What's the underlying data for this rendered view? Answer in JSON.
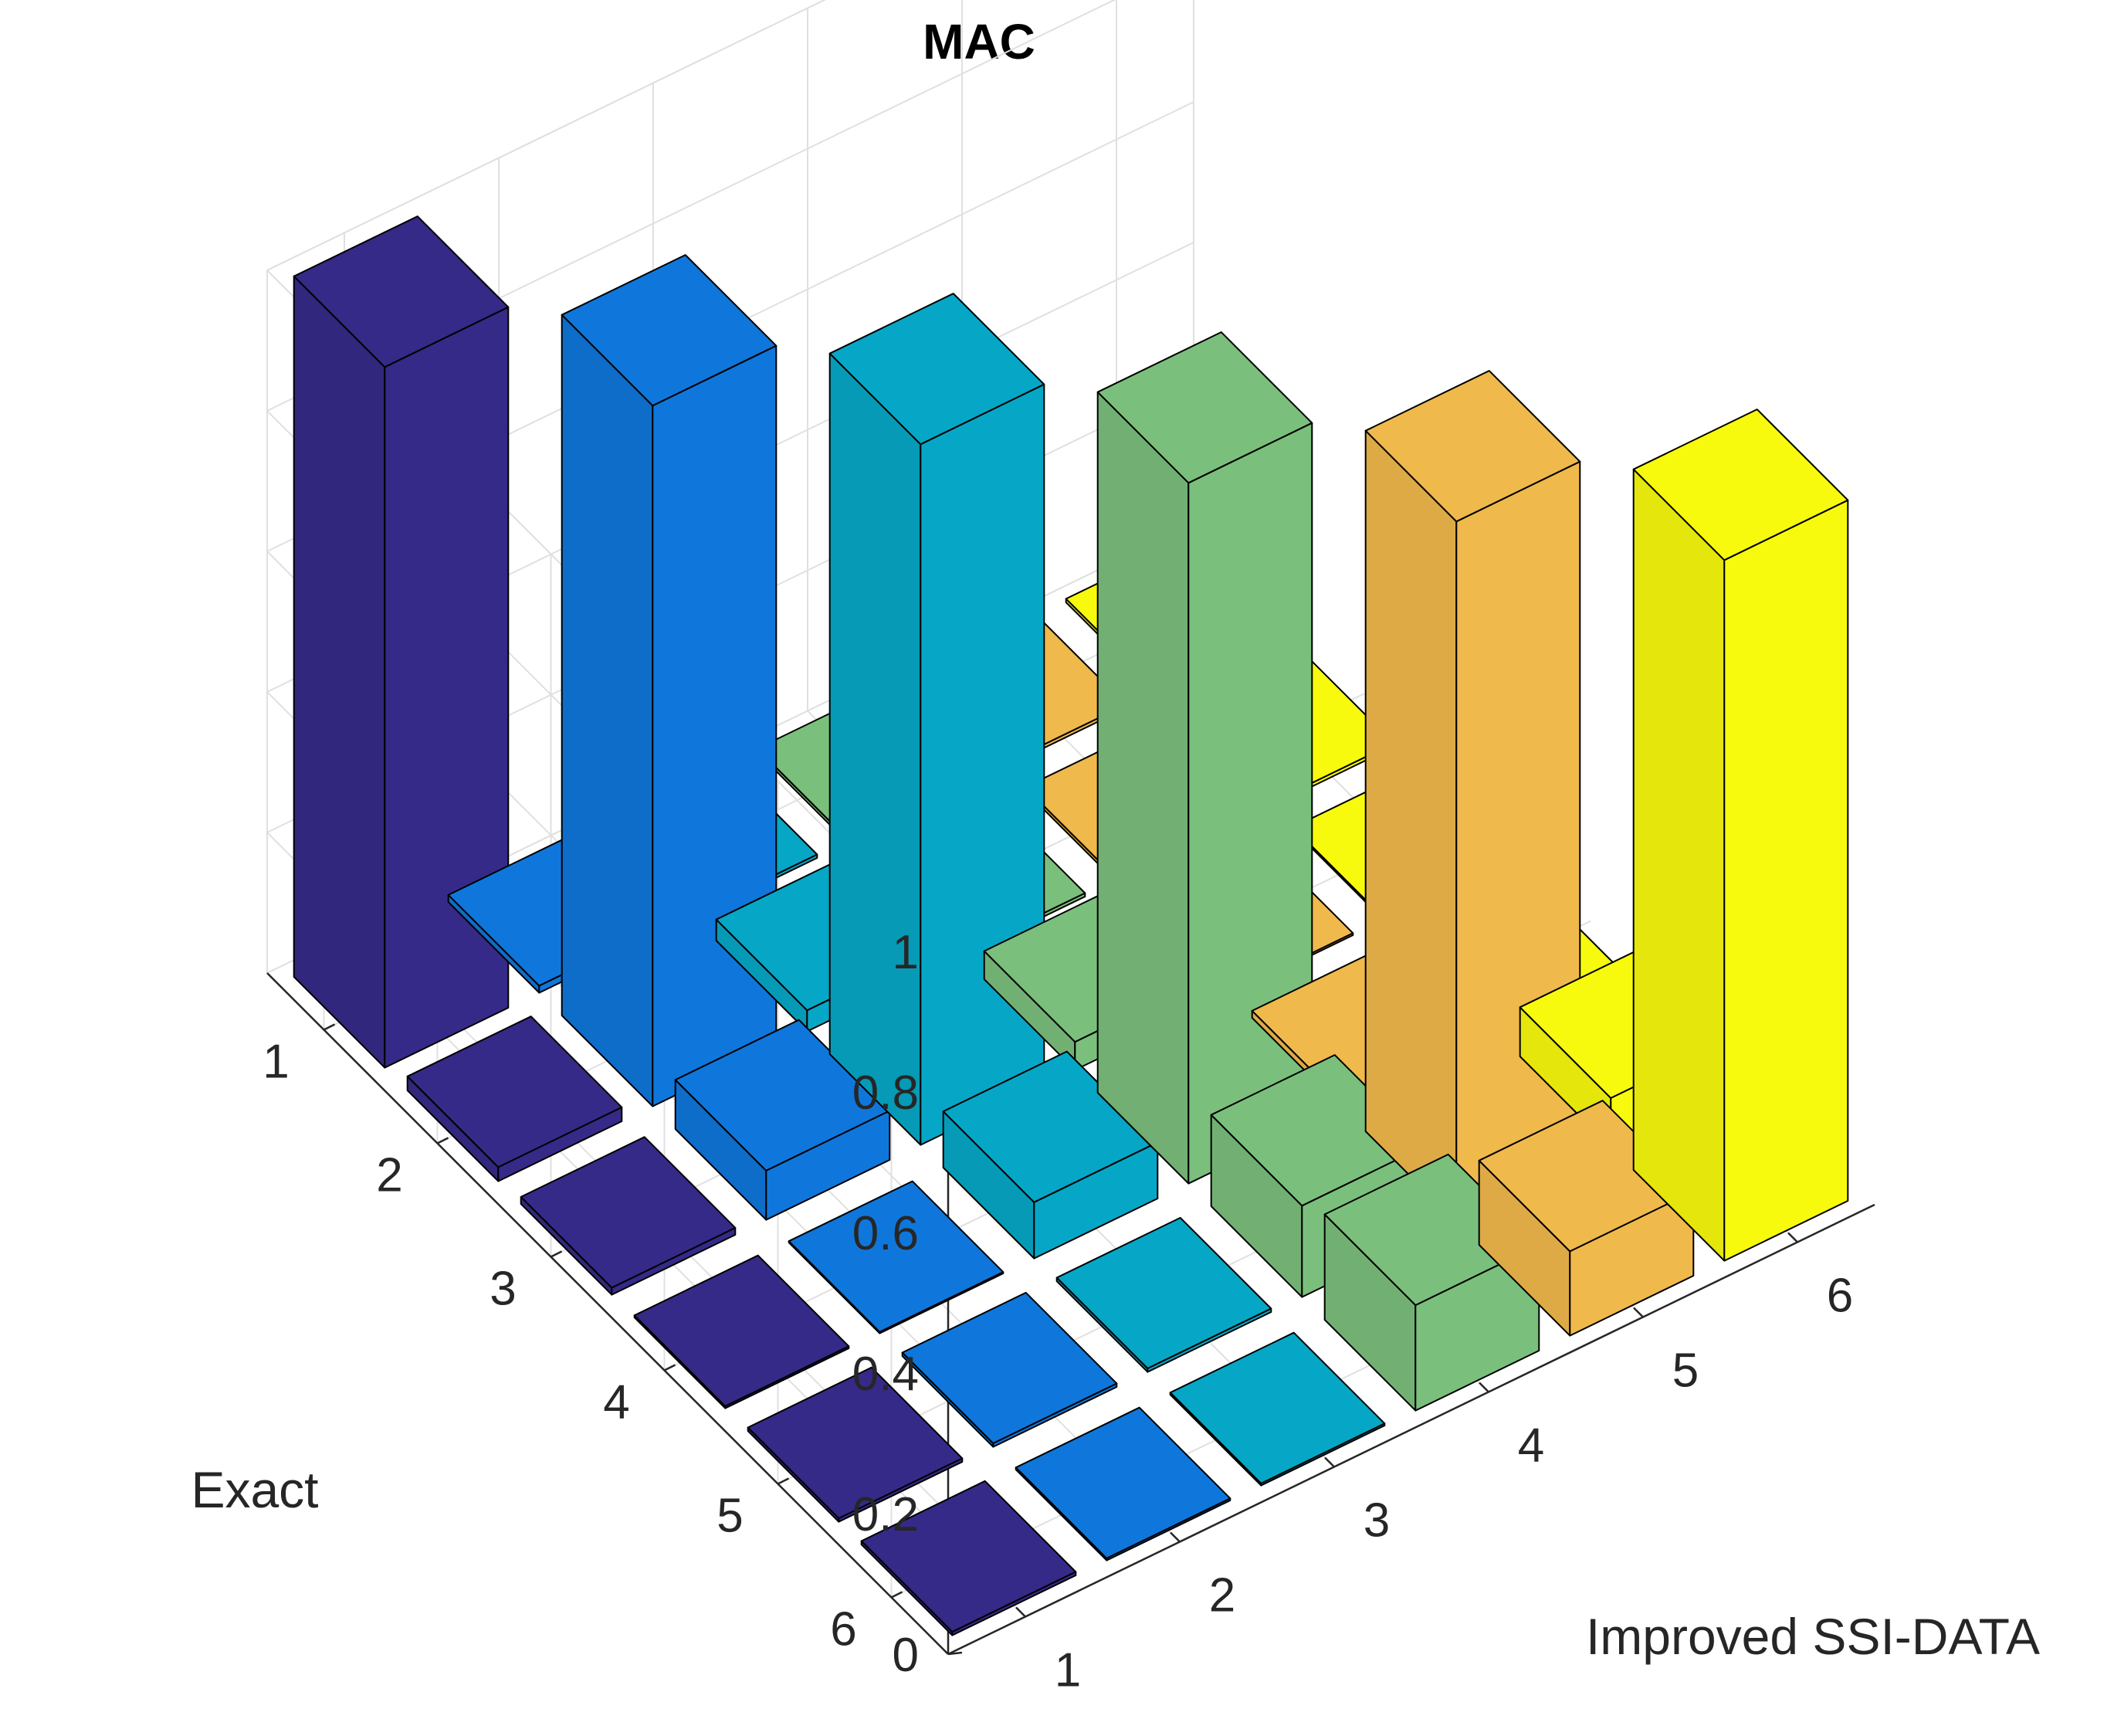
{
  "chart_data": {
    "type": "bar3",
    "title": "MAC",
    "xlabel": "Improved SSI-DATA",
    "ylabel": "Exact",
    "zlabel": "",
    "x_categories": [
      "1",
      "2",
      "3",
      "4",
      "5",
      "6"
    ],
    "y_categories": [
      "1",
      "2",
      "3",
      "4",
      "5",
      "6"
    ],
    "zlim": [
      0,
      1
    ],
    "z_ticks": [
      "0",
      "0.2",
      "0.4",
      "0.6",
      "0.8",
      "1"
    ],
    "grid": true,
    "colormap": [
      "#352a87",
      "#0f77db",
      "#06a7c6",
      "#7bbf7c",
      "#f0b94c",
      "#f8fa0d"
    ],
    "values": [
      [
        0.997,
        0.01,
        0.005,
        0.005,
        0.005,
        0.005
      ],
      [
        0.02,
        0.997,
        0.03,
        0.005,
        0.005,
        0.005
      ],
      [
        0.01,
        0.07,
        0.997,
        0.04,
        0.003,
        0.003
      ],
      [
        0.003,
        0.002,
        0.08,
        0.997,
        0.01,
        0.005
      ],
      [
        0.005,
        0.005,
        0.005,
        0.13,
        0.997,
        0.07
      ],
      [
        0.005,
        0.003,
        0.003,
        0.15,
        0.12,
        0.997
      ]
    ]
  }
}
